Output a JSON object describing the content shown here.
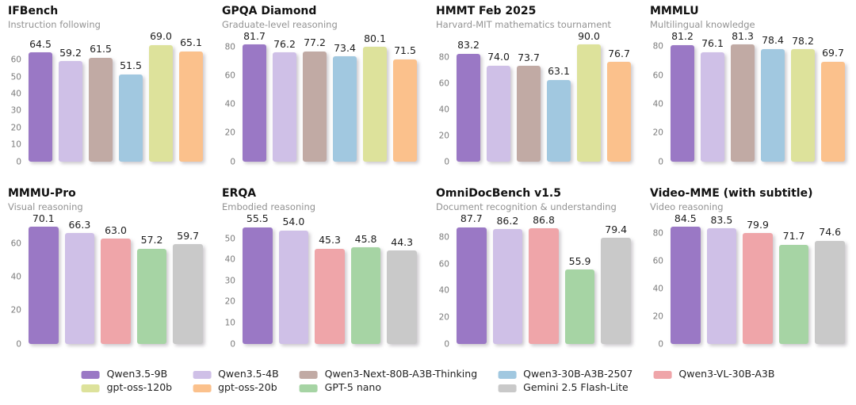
{
  "figure": {
    "background": "#ffffff"
  },
  "palette": {
    "Qwen3.5-9B": "#9a78c5",
    "Qwen3.5-4B": "#cfc0e7",
    "Qwen3-Next-80B-A3B-Thinking": "#c1aaa4",
    "Qwen3-30B-A3B-2507": "#a1c8e0",
    "Qwen3-VL-30B-A3B": "#efa5a9",
    "gpt-oss-120b": "#dde29b",
    "gpt-oss-20b": "#fbc18c",
    "GPT-5 nano": "#a6d4a4",
    "Gemini 2.5 Flash-Lite": "#c9c9c9"
  },
  "legend": {
    "columns": [
      [
        "Qwen3.5-9B",
        "gpt-oss-120b"
      ],
      [
        "Qwen3.5-4B",
        "gpt-oss-20b"
      ],
      [
        "Qwen3-Next-80B-A3B-Thinking",
        "GPT-5 nano"
      ],
      [
        "Qwen3-30B-A3B-2507",
        "Gemini 2.5 Flash-Lite"
      ],
      [
        "Qwen3-VL-30B-A3B"
      ]
    ]
  },
  "chart_data": [
    {
      "type": "bar",
      "title": "IFBench",
      "subtitle": "Instruction following",
      "yticks": [
        0,
        10,
        20,
        30,
        40,
        50,
        60
      ],
      "ylim": [
        0,
        69.7
      ],
      "grid": false,
      "categories": [
        "Qwen3.5-9B",
        "Qwen3.5-4B",
        "Qwen3-Next-80B-A3B-Thinking",
        "Qwen3-30B-A3B-2507",
        "gpt-oss-120b",
        "gpt-oss-20b"
      ],
      "values": [
        64.5,
        59.2,
        61.5,
        51.5,
        69.0,
        65.1
      ]
    },
    {
      "type": "bar",
      "title": "GPQA Diamond",
      "subtitle": "Graduate-level reasoning",
      "yticks": [
        0,
        20,
        40,
        60,
        80
      ],
      "ylim": [
        0,
        82.5
      ],
      "grid": false,
      "categories": [
        "Qwen3.5-9B",
        "Qwen3.5-4B",
        "Qwen3-Next-80B-A3B-Thinking",
        "Qwen3-30B-A3B-2507",
        "gpt-oss-120b",
        "gpt-oss-20b"
      ],
      "values": [
        81.7,
        76.2,
        77.2,
        73.4,
        80.1,
        71.5
      ]
    },
    {
      "type": "bar",
      "title": "HMMT Feb 2025",
      "subtitle": "Harvard-MIT mathematics tournament",
      "yticks": [
        0,
        20,
        40,
        60,
        80
      ],
      "ylim": [
        0,
        90.9
      ],
      "grid": false,
      "categories": [
        "Qwen3.5-9B",
        "Qwen3.5-4B",
        "Qwen3-Next-80B-A3B-Thinking",
        "Qwen3-30B-A3B-2507",
        "gpt-oss-120b",
        "gpt-oss-20b"
      ],
      "values": [
        83.2,
        74.0,
        73.7,
        63.1,
        90.0,
        76.7
      ]
    },
    {
      "type": "bar",
      "title": "MMMLU",
      "subtitle": "Multilingual knowledge",
      "yticks": [
        0,
        20,
        40,
        60,
        80
      ],
      "ylim": [
        0,
        82.1
      ],
      "grid": false,
      "categories": [
        "Qwen3.5-9B",
        "Qwen3.5-4B",
        "Qwen3-Next-80B-A3B-Thinking",
        "Qwen3-30B-A3B-2507",
        "gpt-oss-120b",
        "gpt-oss-20b"
      ],
      "values": [
        81.2,
        76.1,
        81.3,
        78.4,
        78.2,
        69.7
      ]
    },
    {
      "type": "bar",
      "title": "MMMU-Pro",
      "subtitle": "Visual reasoning",
      "yticks": [
        0,
        20,
        40,
        60
      ],
      "ylim": [
        0,
        70.8
      ],
      "grid": false,
      "categories": [
        "Qwen3.5-9B",
        "Qwen3.5-4B",
        "Qwen3-VL-30B-A3B",
        "GPT-5 nano",
        "Gemini 2.5 Flash-Lite"
      ],
      "values": [
        70.1,
        66.3,
        63.0,
        57.2,
        59.7
      ]
    },
    {
      "type": "bar",
      "title": "ERQA",
      "subtitle": "Embodied reasoning",
      "yticks": [
        0,
        10,
        20,
        30,
        40,
        50
      ],
      "ylim": [
        0,
        56.1
      ],
      "grid": false,
      "categories": [
        "Qwen3.5-9B",
        "Qwen3.5-4B",
        "Qwen3-VL-30B-A3B",
        "GPT-5 nano",
        "Gemini 2.5 Flash-Lite"
      ],
      "values": [
        55.5,
        54.0,
        45.3,
        45.8,
        44.3
      ]
    },
    {
      "type": "bar",
      "title": "OmniDocBench v1.5",
      "subtitle": "Document recognition & understanding",
      "yticks": [
        0,
        20,
        40,
        60,
        80
      ],
      "ylim": [
        0,
        88.6
      ],
      "grid": false,
      "categories": [
        "Qwen3.5-9B",
        "Qwen3.5-4B",
        "Qwen3-VL-30B-A3B",
        "GPT-5 nano",
        "Gemini 2.5 Flash-Lite"
      ],
      "values": [
        87.7,
        86.2,
        86.8,
        55.9,
        79.4
      ]
    },
    {
      "type": "bar",
      "title": "Video-MME (with subtitle)",
      "subtitle": "Video reasoning",
      "yticks": [
        0,
        20,
        40,
        60,
        80
      ],
      "ylim": [
        0,
        85.3
      ],
      "grid": false,
      "categories": [
        "Qwen3.5-9B",
        "Qwen3.5-4B",
        "Qwen3-VL-30B-A3B",
        "GPT-5 nano",
        "Gemini 2.5 Flash-Lite"
      ],
      "values": [
        84.5,
        83.5,
        79.9,
        71.7,
        74.6
      ]
    }
  ]
}
